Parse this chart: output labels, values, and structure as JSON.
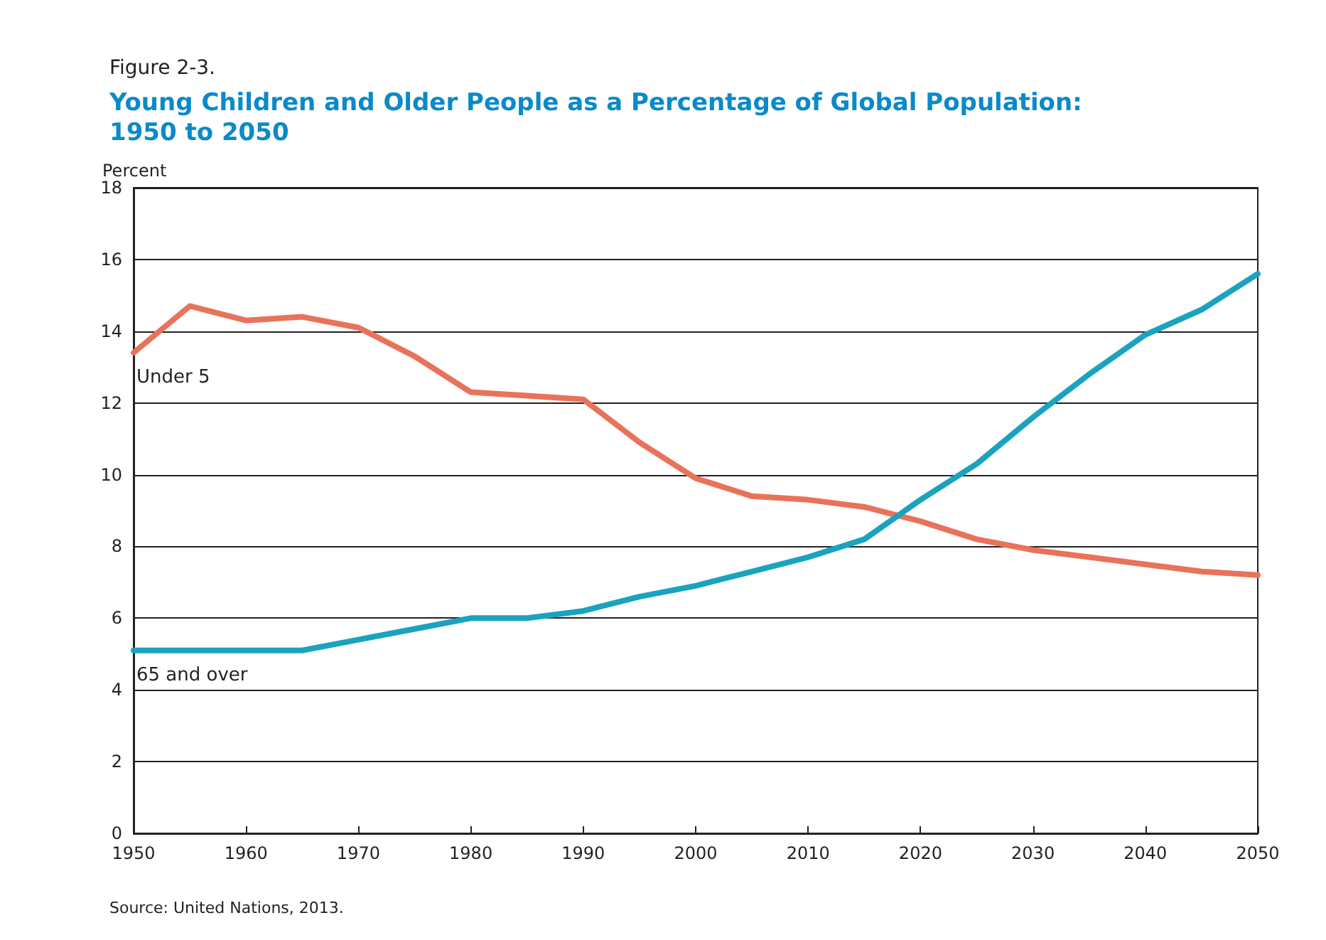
{
  "chart_data": {
    "type": "line",
    "subtitle": "Figure 2-3.",
    "title": "Young Children and Older People as a Percentage of Global Population:\n1950 to 2050",
    "ylabel": "Percent",
    "x": [
      1950,
      1955,
      1960,
      1965,
      1970,
      1975,
      1980,
      1985,
      1990,
      1995,
      2000,
      2005,
      2010,
      2015,
      2020,
      2025,
      2030,
      2035,
      2040,
      2045,
      2050
    ],
    "series": [
      {
        "name": "Under 5",
        "color": "#e8735a",
        "values": [
          13.4,
          14.7,
          14.3,
          14.4,
          14.1,
          13.3,
          12.3,
          12.2,
          12.1,
          10.9,
          9.9,
          9.4,
          9.3,
          9.1,
          8.7,
          8.2,
          7.9,
          7.7,
          7.5,
          7.3,
          7.2
        ]
      },
      {
        "name": "65 and over",
        "color": "#1aa3bf",
        "values": [
          5.1,
          5.1,
          5.1,
          5.1,
          5.4,
          5.7,
          6.0,
          6.0,
          6.2,
          6.6,
          6.9,
          7.3,
          7.7,
          8.2,
          9.3,
          10.3,
          11.6,
          12.8,
          13.9,
          14.6,
          15.6
        ]
      }
    ],
    "xlim": [
      1950,
      2050
    ],
    "xticks": [
      1950,
      1960,
      1970,
      1980,
      1990,
      2000,
      2010,
      2020,
      2030,
      2040,
      2050
    ],
    "ylim": [
      0,
      18
    ],
    "yticks": [
      0,
      2,
      4,
      6,
      8,
      10,
      12,
      14,
      16,
      18
    ],
    "grid": "y",
    "legend": false,
    "marker": "none",
    "line_style": "solid",
    "annotations": [
      "Source: United Nations, 2013."
    ]
  }
}
